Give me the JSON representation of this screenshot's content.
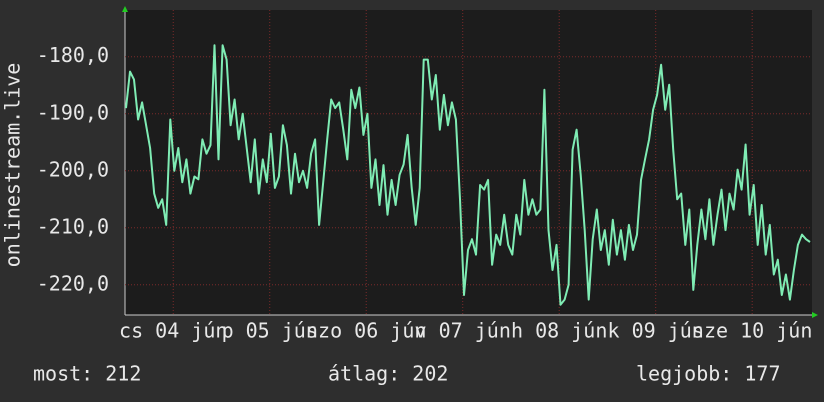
{
  "chart_data": {
    "type": "line",
    "y_label": "onlinestream.live",
    "ylim": [
      -225.3,
      -171.8
    ],
    "yticks": [
      {
        "value": -180,
        "label": "-180,0"
      },
      {
        "value": -190,
        "label": "-190,0"
      },
      {
        "value": -200,
        "label": "-200,0"
      },
      {
        "value": -210,
        "label": "-210,0"
      },
      {
        "value": -220,
        "label": "-220,0"
      }
    ],
    "xlim": [
      0,
      7.12
    ],
    "xticks": [
      {
        "value": 0.5,
        "label": "cs 04 jún"
      },
      {
        "value": 1.5,
        "label": "p 05 jún"
      },
      {
        "value": 2.5,
        "label": "szo 06 jún"
      },
      {
        "value": 3.5,
        "label": "v 07 jún"
      },
      {
        "value": 4.5,
        "label": "h 08 jún"
      },
      {
        "value": 5.5,
        "label": "k 09 jún"
      },
      {
        "value": 6.5,
        "label": "sze 10 jún"
      }
    ],
    "grid": true,
    "series": [
      {
        "color": "#7fecb4",
        "values": [
          -189,
          -182.6,
          -184,
          -191,
          -188,
          -192,
          -196,
          -204,
          -206.5,
          -205,
          -209.5,
          -191,
          -200,
          -196,
          -202,
          -198,
          -204,
          -201,
          -201.5,
          -194.5,
          -197,
          -195.5,
          -178,
          -198,
          -178,
          -180.5,
          -192,
          -187.5,
          -194.5,
          -190,
          -196,
          -202,
          -194.5,
          -204,
          -198,
          -202,
          -193.5,
          -203,
          -201,
          -192,
          -195.5,
          -204,
          -197,
          -202,
          -200,
          -203,
          -197,
          -194.5,
          -209.5,
          -202,
          -194.5,
          -187.5,
          -189,
          -188,
          -192.8,
          -198,
          -185.8,
          -189,
          -185.4,
          -193.7,
          -190,
          -203,
          -198,
          -206,
          -199,
          -207.7,
          -201.6,
          -206,
          -200.7,
          -198.9,
          -193.7,
          -203,
          -209.5,
          -203,
          -180.5,
          -180.5,
          -187.5,
          -183.2,
          -192.8,
          -186.7,
          -192,
          -188,
          -191,
          -205,
          -221.8,
          -213.9,
          -212,
          -214.7,
          -202.5,
          -203.3,
          -201.6,
          -216.5,
          -211.2,
          -213,
          -207.7,
          -213,
          -214.7,
          -207.7,
          -211.2,
          -201.6,
          -207.7,
          -205,
          -207.7,
          -206.8,
          -185.8,
          -210.4,
          -217.4,
          -213,
          -223.5,
          -222.6,
          -220,
          -196.3,
          -192.8,
          -200.7,
          -210.4,
          -222.6,
          -212,
          -206.8,
          -213.9,
          -210.4,
          -216.5,
          -208.6,
          -214.7,
          -210.4,
          -215.6,
          -209.5,
          -213.9,
          -211.2,
          -201.6,
          -198,
          -194.5,
          -189.3,
          -186.7,
          -181.4,
          -189.3,
          -184.9,
          -196.3,
          -205,
          -204,
          -213,
          -206.8,
          -220.9,
          -213,
          -206.8,
          -212,
          -205,
          -213,
          -207.7,
          -203.3,
          -210.4,
          -204,
          -206.8,
          -199.8,
          -203.3,
          -195.4,
          -207.7,
          -202.5,
          -213,
          -206,
          -214.7,
          -209.5,
          -218.2,
          -215.6,
          -221.8,
          -218.2,
          -222.6,
          -217.4,
          -213,
          -211.2,
          -212,
          -212.5
        ]
      }
    ],
    "footer": [
      "most: 212",
      "átlag: 202",
      "legjobb: 177"
    ]
  }
}
